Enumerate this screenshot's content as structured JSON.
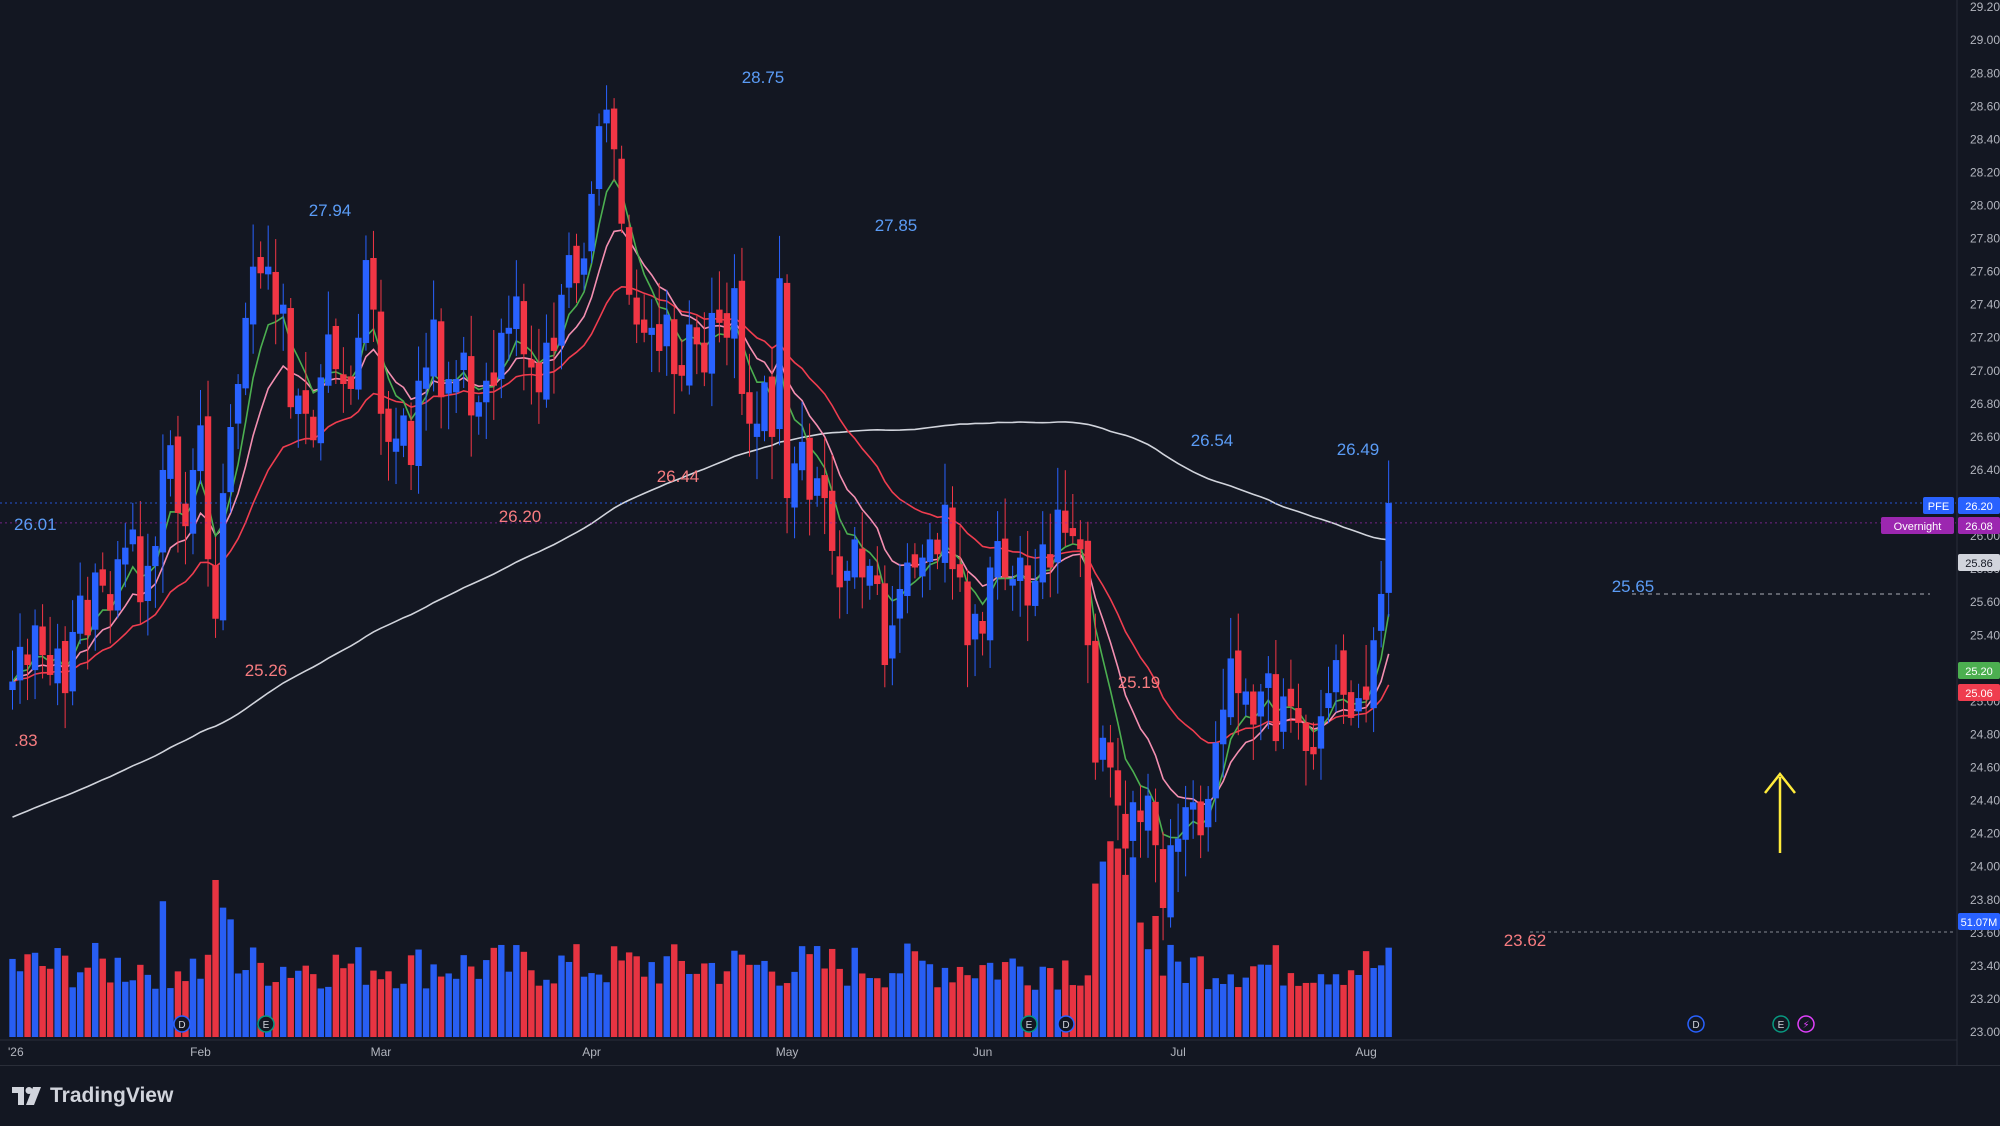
{
  "branding": {
    "name": "TradingView",
    "logo_icon": "tradingview-logo-icon"
  },
  "colors": {
    "background": "#131722",
    "up": "#2962ff",
    "down": "#f23645",
    "ma_fast": "#4caf50",
    "ma_pink": "#f48fb1",
    "ma_red": "#ef3d4f",
    "ma_slow": "#d1d4dc",
    "price_axis_text": "#b2b5be",
    "annotation_arrow": "#ffeb3b"
  },
  "chart_data": {
    "type": "candlestick",
    "symbol": "PFE",
    "price_axis": {
      "min": 23.0,
      "max": 29.2,
      "step": 0.2,
      "ticks": [
        "23.00",
        "23.20",
        "23.40",
        "23.60",
        "23.80",
        "24.00",
        "24.20",
        "24.40",
        "24.60",
        "24.80",
        "25.00",
        "25.20",
        "25.40",
        "25.60",
        "25.80",
        "26.00",
        "26.20",
        "26.40",
        "26.60",
        "26.80",
        "27.00",
        "27.20",
        "27.40",
        "27.60",
        "27.80",
        "28.00",
        "28.20",
        "28.40",
        "28.60",
        "28.80",
        "29.00",
        "29.20"
      ]
    },
    "time_axis": {
      "labels": [
        "'26",
        "Feb",
        "Mar",
        "Apr",
        "May",
        "Jun",
        "Jul",
        "Aug"
      ]
    },
    "price_labels": [
      {
        "name": "PFE",
        "value": "26.20",
        "color": "#2962ff"
      },
      {
        "name": "Overnight",
        "value": "26.08",
        "color": "#9c27b0"
      },
      {
        "name": "",
        "value": "25.86",
        "color": "#d1d4dc"
      },
      {
        "name": "",
        "value": "25.20",
        "color": "#4caf50"
      },
      {
        "name": "",
        "value": "25.06",
        "color": "#ef3d4f"
      },
      {
        "name": "",
        "value": "51.07M",
        "color": "#2962ff"
      }
    ],
    "hl_annotations": [
      {
        "text": "26.01",
        "type": "high"
      },
      {
        "text": ".83",
        "type": "low"
      },
      {
        "text": "27.94",
        "type": "high"
      },
      {
        "text": "25.26",
        "type": "low"
      },
      {
        "text": "26.20",
        "type": "low"
      },
      {
        "text": "26.44",
        "type": "low"
      },
      {
        "text": "28.75",
        "type": "high"
      },
      {
        "text": "27.85",
        "type": "high"
      },
      {
        "text": "26.54",
        "type": "high"
      },
      {
        "text": "25.19",
        "type": "low"
      },
      {
        "text": "26.49",
        "type": "high"
      },
      {
        "text": "25.65",
        "type": "high"
      },
      {
        "text": "23.62",
        "type": "low"
      }
    ],
    "event_markers": [
      "D",
      "E",
      "E",
      "D",
      "D",
      "E",
      "⚡"
    ],
    "closes": [
      25.12,
      25.33,
      25.22,
      25.46,
      25.28,
      25.16,
      25.32,
      25.05,
      25.42,
      25.64,
      25.4,
      25.78,
      25.7,
      25.55,
      25.86,
      25.93,
      26.04,
      25.6,
      25.82,
      25.94,
      26.4,
      26.55,
      26.14,
      26.06,
      26.4,
      26.67,
      25.86,
      25.5,
      26.26,
      26.66,
      26.92,
      27.32,
      27.63,
      27.59,
      27.63,
      27.34,
      27.4,
      26.78,
      26.85,
      26.74,
      26.58,
      26.96,
      27.22,
      27.01,
      26.92,
      26.89,
      27.2,
      27.67,
      27.37,
      26.74,
      26.57,
      26.59,
      26.73,
      26.43,
      26.94,
      27.02,
      27.31,
      26.84,
      26.95,
      26.95,
      27.11,
      26.73,
      26.81,
      26.94,
      26.91,
      27.23,
      27.26,
      27.45,
      27.1,
      27.02,
      26.87,
      27.17,
      27.12,
      27.46,
      27.7,
      27.53,
      27.68,
      28.07,
      28.48,
      28.58,
      28.34,
      27.89,
      27.46,
      27.28,
      27.23,
      27.26,
      27.12,
      27.34,
      26.98,
      26.97,
      27.28,
      27.16,
      26.99,
      27.35,
      27.29,
      27.2,
      27.5,
      26.86,
      26.68,
      26.68,
      26.93,
      26.6,
      27.56,
      26.23,
      26.44,
      26.57,
      26.22,
      26.35,
      26.23,
      25.91,
      25.69,
      25.79,
      25.98,
      25.75,
      25.82,
      25.71,
      25.22,
      25.46,
      25.68,
      25.84,
      25.81,
      25.87,
      25.98,
      25.89,
      26.19,
      25.8,
      25.75,
      25.34,
      25.53,
      25.41,
      25.81,
      25.97,
      25.75,
      25.74,
      25.87,
      25.58,
      25.73,
      25.95,
      25.81,
      26.16,
      26.02,
      26.0,
      25.92,
      25.34,
      24.63,
      24.78,
      24.6,
      24.37,
      24.11,
      24.39,
      24.27,
      24.43,
      24.13,
      23.75,
      24.13,
      24.17,
      24.36,
      24.39,
      24.19,
      24.41,
      24.75,
      24.95,
      25.26,
      25.05,
      25.06,
      24.86,
      25.06,
      25.17,
      24.76,
      25.03,
      24.97,
      24.87,
      24.7,
      24.68,
      24.91,
      25.05,
      25.25,
      25.04,
      24.9,
      25.02,
      25.01,
      25.37,
      25.65,
      26.2
    ]
  }
}
